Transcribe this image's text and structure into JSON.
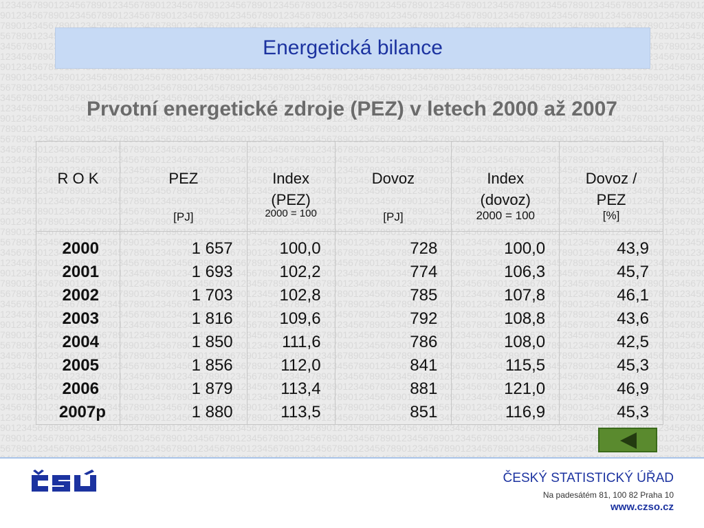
{
  "header": {
    "title": "Energetická bilance"
  },
  "subtitle": "Prvotní energetické zdroje (PEZ) v letech 2000 až 2007",
  "table": {
    "columns": [
      {
        "label": "R O K",
        "label2": "",
        "unit": ""
      },
      {
        "label": "PEZ",
        "label2": "",
        "unit": "[PJ]"
      },
      {
        "label": "Index",
        "label2": "(PEZ)",
        "unit": "2000 = 100"
      },
      {
        "label": "Dovoz",
        "label2": "",
        "unit": "[PJ]"
      },
      {
        "label": "Index",
        "label2": "(dovoz)",
        "unit": "2000 = 100"
      },
      {
        "label": "Dovoz /",
        "label2": "PEZ",
        "unit": "[%]"
      }
    ],
    "rows": [
      [
        "2000",
        "1 657",
        "100,0",
        "728",
        "100,0",
        "43,9"
      ],
      [
        "2001",
        "1 693",
        "102,2",
        "774",
        "106,3",
        "45,7"
      ],
      [
        "2002",
        "1 703",
        "102,8",
        "785",
        "107,8",
        "46,1"
      ],
      [
        "2003",
        "1 816",
        "109,6",
        "792",
        "108,8",
        "43,6"
      ],
      [
        "2004",
        "1 850",
        "111,6",
        "786",
        "108,0",
        "42,5"
      ],
      [
        "2005",
        "1 856",
        "112,0",
        "841",
        "115,5",
        "45,3"
      ],
      [
        "2006",
        "1 879",
        "113,4",
        "881",
        "121,0",
        "46,9"
      ],
      [
        "2007p",
        "1 880",
        "113,5",
        "851",
        "116,9",
        "45,3"
      ]
    ]
  },
  "nav": {
    "back_icon": "triangle-left-icon",
    "color": "#5a8a2e"
  },
  "footer": {
    "logo": "ČSÚ",
    "org_name": "ČESKÝ STATISTICKÝ ÚŘAD",
    "address": "Na padesátém 81, 100 82  Praha 10",
    "website": "www.czso.cz"
  },
  "colors": {
    "accent": "#1c33a0",
    "band": "#c7daf5",
    "subtitle": "#6b6b6b"
  }
}
